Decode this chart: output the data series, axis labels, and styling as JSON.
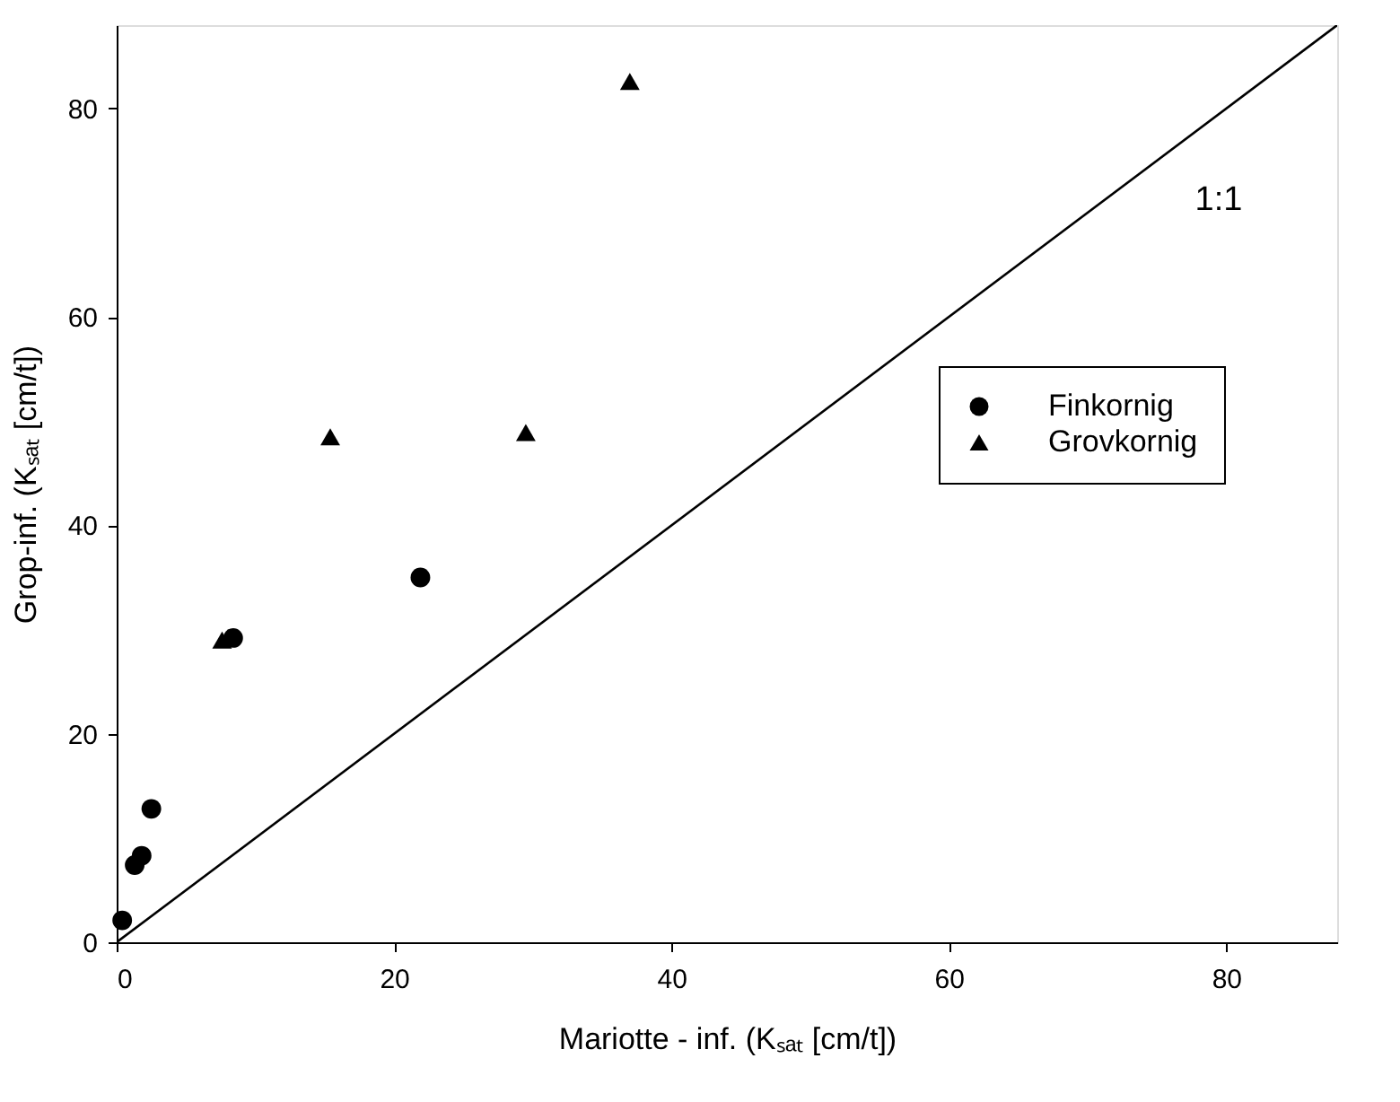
{
  "chart_data": {
    "type": "scatter",
    "xlabel": "Mariotte - inf. (Kₛₐₜ [cm/t])",
    "ylabel": "Grop-inf. (Kₛₐₜ [cm/t])",
    "xlim": [
      0,
      88
    ],
    "ylim": [
      0,
      88
    ],
    "xticks": [
      0,
      20,
      40,
      60,
      80
    ],
    "yticks": [
      0,
      20,
      40,
      60,
      80
    ],
    "grid": false,
    "legend": "right",
    "series": [
      {
        "name": "Finkornig",
        "color": "#000000",
        "marker": "circle",
        "x": [
          0.4,
          1.3,
          1.8,
          2.5,
          8.4,
          21.9
        ],
        "values": [
          2.1,
          7.4,
          8.3,
          12.8,
          29.2,
          35.0
        ]
      },
      {
        "name": "Grovkornig",
        "color": "#000000",
        "marker": "triangle",
        "x": [
          7.6,
          15.4,
          29.5,
          37.0
        ],
        "values": [
          29.0,
          48.5,
          48.9,
          82.6
        ]
      },
      {
        "type": "line",
        "color": "#000000",
        "x": [
          0,
          88
        ],
        "values": [
          0,
          88
        ]
      }
    ],
    "annotations": [
      "1:1"
    ]
  }
}
